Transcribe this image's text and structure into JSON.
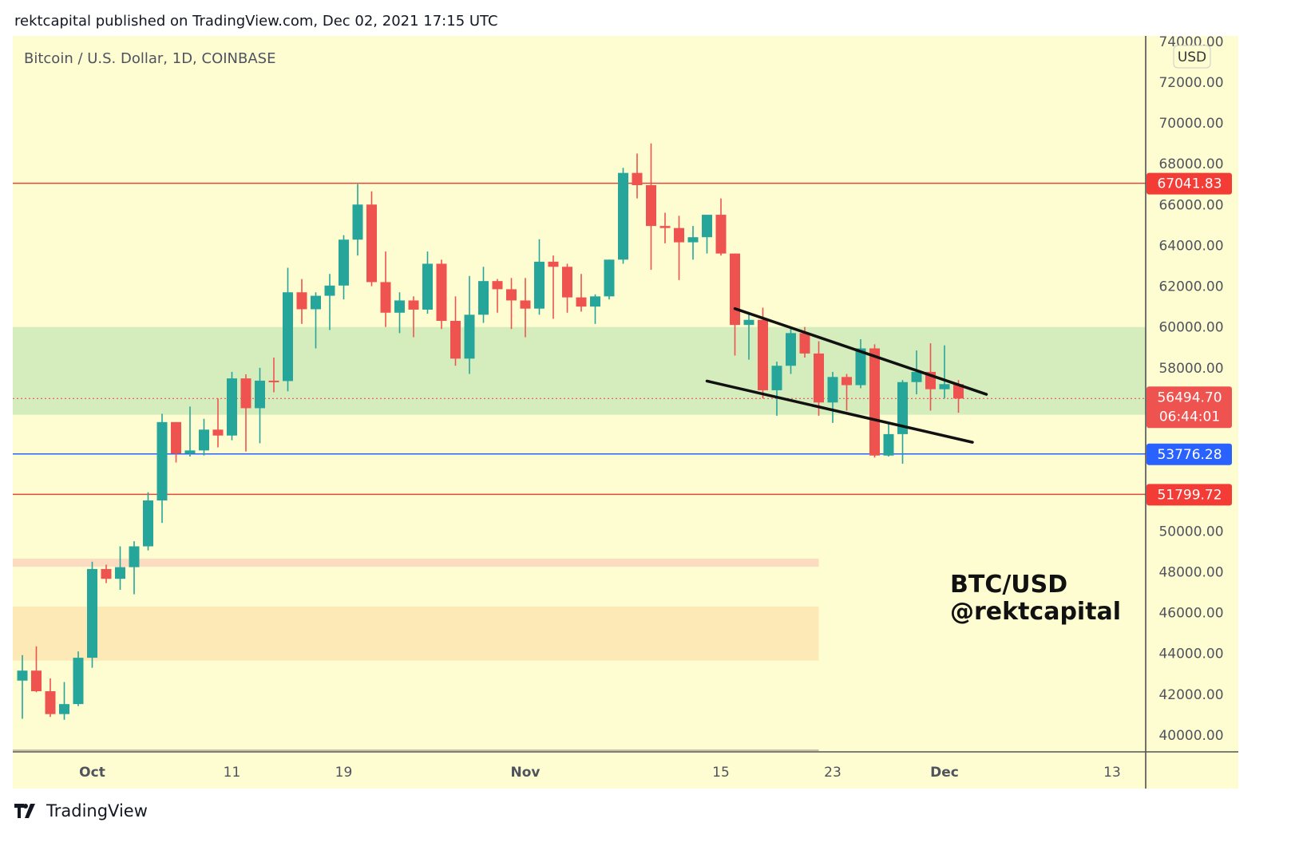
{
  "header": {
    "published": "rektcapital published on TradingView.com, Dec 02, 2021 17:15 UTC"
  },
  "footer": {
    "brand": "TradingView",
    "logo_icon": "tradingview-logo-icon"
  },
  "chart_data": {
    "type": "candlestick",
    "title": "Bitcoin / U.S. Dollar, 1D, COINBASE",
    "currency_badge": "USD",
    "watermark": [
      "BTC/USD",
      "@rektcapital"
    ],
    "ylim": [
      39500,
      74500
    ],
    "y_ticks": [
      "74000.00",
      "72000.00",
      "70000.00",
      "68000.00",
      "66000.00",
      "64000.00",
      "62000.00",
      "60000.00",
      "58000.00",
      "50000.00",
      "48000.00",
      "46000.00",
      "44000.00",
      "42000.00",
      "40000.00"
    ],
    "x_ticks": [
      {
        "label": "Oct",
        "date": "2021-10-01"
      },
      {
        "label": "11",
        "date": "2021-10-11"
      },
      {
        "label": "19",
        "date": "2021-10-19"
      },
      {
        "label": "Nov",
        "date": "2021-11-01"
      },
      {
        "label": "15",
        "date": "2021-11-15"
      },
      {
        "label": "23",
        "date": "2021-11-23"
      },
      {
        "label": "Dec",
        "date": "2021-12-01"
      },
      {
        "label": "13",
        "date": "2021-12-13"
      }
    ],
    "colors": {
      "up": "#26a69a",
      "down": "#ef5350",
      "background": "#fefdd2",
      "line_red": "#e0483e",
      "line_blue": "#2962ff"
    },
    "horizontal_lines": [
      {
        "price": 67041.83,
        "label": "67041.83",
        "color": "#e0483e",
        "style": "solid"
      },
      {
        "price": 53776.28,
        "label": "53776.28",
        "color": "#2962ff",
        "style": "solid"
      },
      {
        "price": 51799.72,
        "label": "51799.72",
        "color": "#e0483e",
        "style": "solid"
      }
    ],
    "last_price": {
      "price": 56494.7,
      "label": "56494.70",
      "countdown": "06:44:01",
      "color": "#ef5350"
    },
    "zones": [
      {
        "from": 55700,
        "to": 60000,
        "color": "#d5ecbd",
        "end": null
      },
      {
        "from": 48250,
        "to": 48650,
        "color": "#fbdcc1",
        "end": "2021-11-22"
      },
      {
        "from": 43650,
        "to": 46300,
        "color": "#fde9b6",
        "end": "2021-11-22"
      }
    ],
    "trendlines": [
      {
        "start": {
          "date": "2021-11-16",
          "price": 60900
        },
        "end": {
          "date": "2021-12-04",
          "price": 56700
        }
      },
      {
        "start": {
          "date": "2021-11-14",
          "price": 57350
        },
        "end": {
          "date": "2021-12-03",
          "price": 54350
        }
      }
    ],
    "candles_fields": [
      "date",
      "open",
      "high",
      "low",
      "close"
    ],
    "candles": [
      [
        "2021-09-26",
        42670,
        43920,
        40800,
        43160
      ],
      [
        "2021-09-27",
        43160,
        44350,
        42100,
        42150
      ],
      [
        "2021-09-28",
        42150,
        42780,
        40890,
        41030
      ],
      [
        "2021-09-29",
        41030,
        42600,
        40750,
        41520
      ],
      [
        "2021-09-30",
        41520,
        44100,
        41420,
        43790
      ],
      [
        "2021-10-01",
        43790,
        48500,
        43300,
        48140
      ],
      [
        "2021-10-02",
        48140,
        48350,
        47450,
        47660
      ],
      [
        "2021-10-03",
        47660,
        49250,
        47120,
        48230
      ],
      [
        "2021-10-04",
        48230,
        49500,
        46900,
        49250
      ],
      [
        "2021-10-05",
        49250,
        51900,
        49050,
        51500
      ],
      [
        "2021-10-06",
        51500,
        55750,
        50400,
        55340
      ],
      [
        "2021-10-07",
        55340,
        55340,
        53360,
        53800
      ],
      [
        "2021-10-08",
        53800,
        56100,
        53650,
        53950
      ],
      [
        "2021-10-09",
        53950,
        55500,
        53700,
        54970
      ],
      [
        "2021-10-10",
        54970,
        56500,
        54100,
        54680
      ],
      [
        "2021-10-11",
        54680,
        57800,
        54450,
        57480
      ],
      [
        "2021-10-12",
        57480,
        57680,
        53900,
        56020
      ],
      [
        "2021-10-13",
        56020,
        58000,
        54300,
        57370
      ],
      [
        "2021-10-14",
        57370,
        58500,
        56800,
        57350
      ],
      [
        "2021-10-15",
        57350,
        62900,
        56850,
        61700
      ],
      [
        "2021-10-16",
        61700,
        62350,
        60150,
        60870
      ],
      [
        "2021-10-17",
        60870,
        61700,
        58950,
        61530
      ],
      [
        "2021-10-18",
        61530,
        62600,
        59850,
        62030
      ],
      [
        "2021-10-19",
        62030,
        64500,
        61350,
        64280
      ],
      [
        "2021-10-20",
        64280,
        67000,
        63500,
        66000
      ],
      [
        "2021-10-21",
        66000,
        66650,
        62000,
        62200
      ],
      [
        "2021-10-22",
        62200,
        63700,
        60000,
        60700
      ],
      [
        "2021-10-23",
        60700,
        61700,
        59700,
        61300
      ],
      [
        "2021-10-24",
        61300,
        61500,
        59500,
        60850
      ],
      [
        "2021-10-25",
        60850,
        63700,
        60650,
        63100
      ],
      [
        "2021-10-26",
        63100,
        63300,
        59900,
        60300
      ],
      [
        "2021-10-27",
        60300,
        61500,
        58100,
        58450
      ],
      [
        "2021-10-28",
        58450,
        62500,
        57700,
        60600
      ],
      [
        "2021-10-29",
        60600,
        62950,
        60200,
        62250
      ],
      [
        "2021-10-30",
        62250,
        62350,
        60700,
        61850
      ],
      [
        "2021-10-31",
        61850,
        62400,
        59900,
        61300
      ],
      [
        "2021-11-01",
        61300,
        62400,
        59500,
        60900
      ],
      [
        "2021-11-02",
        60900,
        64300,
        60600,
        63200
      ],
      [
        "2021-11-03",
        63200,
        63500,
        60400,
        62950
      ],
      [
        "2021-11-04",
        62950,
        63100,
        60700,
        61450
      ],
      [
        "2021-11-05",
        61450,
        62600,
        60750,
        61000
      ],
      [
        "2021-11-06",
        61000,
        61600,
        60150,
        61500
      ],
      [
        "2021-11-07",
        61500,
        63300,
        61350,
        63300
      ],
      [
        "2021-11-08",
        63300,
        67800,
        63100,
        67550
      ],
      [
        "2021-11-09",
        67550,
        68500,
        66300,
        66950
      ],
      [
        "2021-11-10",
        66950,
        69000,
        62800,
        64950
      ],
      [
        "2021-11-11",
        64950,
        65600,
        64100,
        64850
      ],
      [
        "2021-11-12",
        64850,
        65450,
        62300,
        64150
      ],
      [
        "2021-11-13",
        64150,
        64950,
        63300,
        64400
      ],
      [
        "2021-11-14",
        64400,
        65500,
        63600,
        65500
      ],
      [
        "2021-11-15",
        65500,
        66300,
        63500,
        63600
      ],
      [
        "2021-11-16",
        63600,
        63600,
        58600,
        60100
      ],
      [
        "2021-11-17",
        60100,
        60700,
        58400,
        60350
      ],
      [
        "2021-11-18",
        60350,
        60950,
        56500,
        56900
      ],
      [
        "2021-11-19",
        56900,
        58300,
        55650,
        58100
      ],
      [
        "2021-11-20",
        58100,
        59900,
        57700,
        59700
      ],
      [
        "2021-11-21",
        59700,
        60000,
        58500,
        58700
      ],
      [
        "2021-11-22",
        58700,
        59300,
        55650,
        56300
      ],
      [
        "2021-11-23",
        56300,
        57800,
        55300,
        57550
      ],
      [
        "2021-11-24",
        57550,
        57700,
        55900,
        57150
      ],
      [
        "2021-11-25",
        57150,
        59400,
        57000,
        58950
      ],
      [
        "2021-11-26",
        58950,
        59150,
        53600,
        53700
      ],
      [
        "2021-11-27",
        53700,
        55300,
        53650,
        54750
      ],
      [
        "2021-11-28",
        54750,
        57400,
        53300,
        57300
      ],
      [
        "2021-11-29",
        57300,
        58850,
        56700,
        57800
      ],
      [
        "2021-11-30",
        57800,
        59200,
        55900,
        56950
      ],
      [
        "2021-12-01",
        56950,
        59100,
        56500,
        57200
      ],
      [
        "2021-12-02",
        57200,
        57400,
        55800,
        56494.7
      ]
    ]
  }
}
